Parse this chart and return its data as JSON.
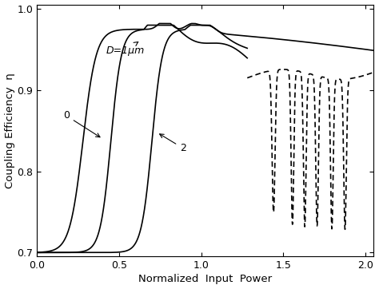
{
  "xlabel": "Normalized  Input  Power",
  "ylabel": "Coupling Efficiency  η",
  "xlim": [
    0,
    2.05
  ],
  "ylim": [
    0.695,
    1.005
  ],
  "yticks": [
    0.7,
    0.8,
    0.9,
    1
  ],
  "xticks": [
    0,
    0.5,
    1,
    1.5,
    2
  ],
  "annotation_D": "D=1μm",
  "annotation_0": "0",
  "annotation_2": "2",
  "bg_color": "#ffffff"
}
